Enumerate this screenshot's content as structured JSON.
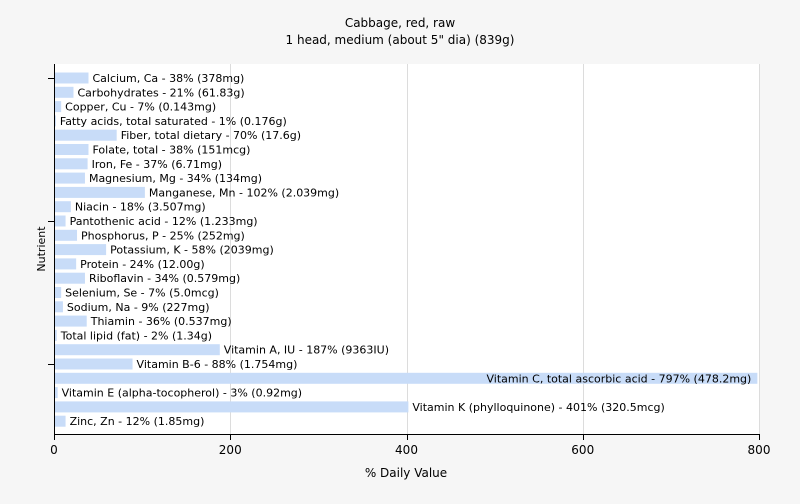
{
  "chart_data": {
    "type": "bar",
    "orientation": "horizontal",
    "title": "Cabbage, red, raw",
    "subtitle": "1 head, medium (about 5\" dia) (839g)",
    "xlabel": "% Daily Value",
    "ylabel": "Nutrient",
    "xlim": [
      0,
      800
    ],
    "xticks": [
      0,
      200,
      400,
      600,
      800
    ],
    "grid": true,
    "bar_color": "#c8dcf8",
    "categories": [
      "Calcium, Ca",
      "Carbohydrates",
      "Copper, Cu",
      "Fatty acids, total saturated",
      "Fiber, total dietary",
      "Folate, total",
      "Iron, Fe",
      "Magnesium, Mg",
      "Manganese, Mn",
      "Niacin",
      "Pantothenic acid",
      "Phosphorus, P",
      "Potassium, K",
      "Protein",
      "Riboflavin",
      "Selenium, Se",
      "Sodium, Na",
      "Thiamin",
      "Total lipid (fat)",
      "Vitamin A, IU",
      "Vitamin B-6",
      "Vitamin C, total ascorbic acid",
      "Vitamin E (alpha-tocopherol)",
      "Vitamin K (phylloquinone)",
      "Zinc, Zn"
    ],
    "values": [
      38,
      21,
      7,
      1,
      70,
      38,
      37,
      34,
      102,
      18,
      12,
      25,
      58,
      24,
      34,
      7,
      9,
      36,
      2,
      187,
      88,
      797,
      3,
      401,
      12
    ],
    "labels": [
      "Calcium, Ca - 38% (378mg)",
      "Carbohydrates - 21% (61.83g)",
      "Copper, Cu - 7% (0.143mg)",
      "Fatty acids, total saturated - 1% (0.176g)",
      "Fiber, total dietary - 70% (17.6g)",
      "Folate, total - 38% (151mcg)",
      "Iron, Fe - 37% (6.71mg)",
      "Magnesium, Mg - 34% (134mg)",
      "Manganese, Mn - 102% (2.039mg)",
      "Niacin - 18% (3.507mg)",
      "Pantothenic acid - 12% (1.233mg)",
      "Phosphorus, P - 25% (252mg)",
      "Potassium, K - 58% (2039mg)",
      "Protein - 24% (12.00g)",
      "Riboflavin - 34% (0.579mg)",
      "Selenium, Se - 7% (5.0mcg)",
      "Sodium, Na - 9% (227mg)",
      "Thiamin - 36% (0.537mg)",
      "Total lipid (fat) - 2% (1.34g)",
      "Vitamin A, IU - 187% (9363IU)",
      "Vitamin B-6 - 88% (1.754mg)",
      "Vitamin C, total ascorbic acid - 797% (478.2mg)",
      "Vitamin E (alpha-tocopherol) - 3% (0.92mg)",
      "Vitamin K (phylloquinone) - 401% (320.5mcg)",
      "Zinc, Zn - 12% (1.85mg)"
    ]
  }
}
